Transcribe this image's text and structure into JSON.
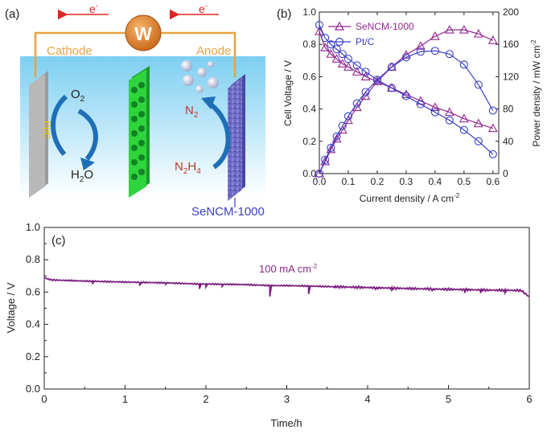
{
  "panel_a": {
    "label": "(a)",
    "electron_left": "e",
    "electron_right": "e",
    "electron_sup": "-",
    "load_symbol": "W",
    "cathode_label": "Cathode",
    "anode_label": "Anode",
    "cathode_catalyst": "Pt/C",
    "o2": "O",
    "o2_sub": "2",
    "h2o_a": "H",
    "h2o_sub": "2",
    "h2o_b": "O",
    "n2": "N",
    "n2_sub": "2",
    "n2h4_a": "N",
    "n2h4_sub1": "2",
    "n2h4_b": "H",
    "n2h4_sub2": "4",
    "anode_catalyst": "SeNCM-1000"
  },
  "chart_data": [
    {
      "panel": "(b)",
      "type": "line",
      "xlabel": "Current density / A cm",
      "xlabel_sup": "-2",
      "ylabel_left": "Cell Voltage / V",
      "ylabel_right": "Power density / mW cm",
      "ylabel_right_sup": "-2",
      "xlim": [
        0,
        0.62
      ],
      "ylim_left": [
        0,
        1.0
      ],
      "ylim_right": [
        0,
        200
      ],
      "xticks": [
        "0.0",
        "0.1",
        "0.2",
        "0.3",
        "0.4",
        "0.5",
        "0.6"
      ],
      "yticks_left": [
        "0.0",
        "0.2",
        "0.4",
        "0.6",
        "0.8",
        "1.0"
      ],
      "yticks_right": [
        "0",
        "40",
        "80",
        "120",
        "160",
        "200"
      ],
      "legend": [
        {
          "name": "SeNCM-1000",
          "marker": "triangle",
          "color": "#93268f"
        },
        {
          "name": "Pt/C",
          "marker": "circle",
          "color": "#3a3fc8"
        }
      ],
      "series": [
        {
          "name": "SeNCM-1000",
          "kind": "voltage",
          "axis": "left",
          "color": "#93268f",
          "marker": "triangle",
          "x": [
            0.0,
            0.02,
            0.04,
            0.06,
            0.08,
            0.1,
            0.13,
            0.16,
            0.2,
            0.25,
            0.3,
            0.35,
            0.4,
            0.45,
            0.5,
            0.55,
            0.6
          ],
          "y": [
            0.88,
            0.78,
            0.74,
            0.71,
            0.68,
            0.66,
            0.63,
            0.6,
            0.57,
            0.53,
            0.49,
            0.45,
            0.41,
            0.38,
            0.34,
            0.31,
            0.28
          ]
        },
        {
          "name": "SeNCM-1000",
          "kind": "power",
          "axis": "right",
          "color": "#93268f",
          "marker": "triangle",
          "x": [
            0.0,
            0.02,
            0.04,
            0.06,
            0.08,
            0.1,
            0.13,
            0.16,
            0.2,
            0.25,
            0.3,
            0.35,
            0.4,
            0.45,
            0.5,
            0.55,
            0.6
          ],
          "y": [
            0,
            15,
            30,
            43,
            54,
            66,
            82,
            96,
            114,
            132,
            147,
            158,
            170,
            178,
            178,
            173,
            165
          ]
        },
        {
          "name": "Pt/C",
          "kind": "voltage",
          "axis": "left",
          "color": "#3a3fc8",
          "marker": "circle",
          "x": [
            0.0,
            0.02,
            0.04,
            0.06,
            0.08,
            0.1,
            0.13,
            0.16,
            0.2,
            0.25,
            0.3,
            0.35,
            0.4,
            0.45,
            0.5,
            0.55,
            0.6
          ],
          "y": [
            0.92,
            0.84,
            0.8,
            0.77,
            0.74,
            0.71,
            0.67,
            0.63,
            0.58,
            0.53,
            0.48,
            0.43,
            0.38,
            0.33,
            0.27,
            0.2,
            0.12
          ]
        },
        {
          "name": "Pt/C",
          "kind": "power",
          "axis": "right",
          "color": "#3a3fc8",
          "marker": "circle",
          "x": [
            0.0,
            0.02,
            0.04,
            0.06,
            0.08,
            0.1,
            0.13,
            0.16,
            0.2,
            0.25,
            0.3,
            0.35,
            0.4,
            0.45,
            0.5,
            0.55,
            0.6
          ],
          "y": [
            0,
            17,
            32,
            46,
            59,
            71,
            87,
            101,
            116,
            132,
            144,
            151,
            152,
            148,
            135,
            110,
            78
          ]
        }
      ]
    },
    {
      "panel": "(c)",
      "type": "line",
      "xlabel": "Time/h",
      "ylabel": "Voltage / V",
      "xlim": [
        0,
        6
      ],
      "ylim": [
        0,
        1.0
      ],
      "xticks": [
        "0",
        "1",
        "2",
        "3",
        "4",
        "5",
        "6"
      ],
      "yticks": [
        "0.0",
        "0.2",
        "0.4",
        "0.6",
        "0.8",
        "1.0"
      ],
      "annotation": "100 mA cm",
      "annotation_sup": "-2",
      "color": "#7b1f80",
      "series": [
        {
          "x": [
            0.0,
            0.05,
            0.1,
            0.5,
            1.0,
            1.5,
            1.9,
            2.0,
            2.5,
            2.8,
            3.0,
            3.3,
            3.5,
            4.0,
            4.5,
            5.0,
            5.5,
            5.9,
            6.0
          ],
          "y": [
            0.69,
            0.68,
            0.675,
            0.668,
            0.662,
            0.657,
            0.65,
            0.65,
            0.646,
            0.64,
            0.64,
            0.637,
            0.634,
            0.628,
            0.622,
            0.617,
            0.612,
            0.61,
            0.57
          ]
        }
      ],
      "dips": [
        {
          "x": 0.6,
          "y": 0.655
        },
        {
          "x": 1.18,
          "y": 0.64
        },
        {
          "x": 1.5,
          "y": 0.648
        },
        {
          "x": 1.92,
          "y": 0.62
        },
        {
          "x": 2.0,
          "y": 0.632
        },
        {
          "x": 2.2,
          "y": 0.635
        },
        {
          "x": 2.79,
          "y": 0.572
        },
        {
          "x": 3.27,
          "y": 0.588
        },
        {
          "x": 3.6,
          "y": 0.628
        },
        {
          "x": 4.1,
          "y": 0.618
        },
        {
          "x": 4.3,
          "y": 0.612
        },
        {
          "x": 4.8,
          "y": 0.61
        },
        {
          "x": 5.2,
          "y": 0.595
        },
        {
          "x": 5.4,
          "y": 0.6
        },
        {
          "x": 5.7,
          "y": 0.595
        }
      ]
    }
  ]
}
